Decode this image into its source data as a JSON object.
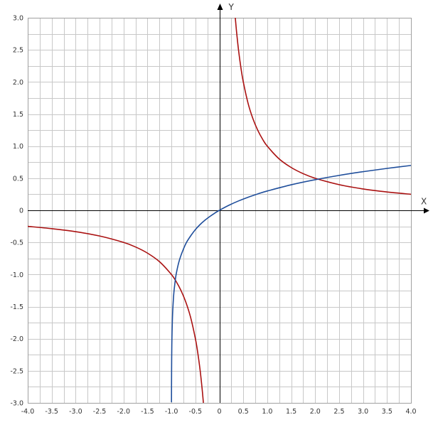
{
  "chart_data": {
    "type": "line",
    "xlim": [
      -4.0,
      4.0
    ],
    "ylim": [
      -3.0,
      3.0
    ],
    "grid": true,
    "x_axis_label": "X",
    "y_axis_label": "Y",
    "x_ticks": [
      "-4.0",
      "-3.5",
      "-3.0",
      "-2.5",
      "-2.0",
      "-1.5",
      "-1.0",
      "-0.5",
      "0",
      "0.5",
      "1.0",
      "1.5",
      "2.0",
      "2.5",
      "3.0",
      "3.5",
      "4.0"
    ],
    "y_ticks": [
      "3.0",
      "2.5",
      "2.0",
      "1.5",
      "1.0",
      "0.5",
      "0",
      "-0.5",
      "-1.0",
      "-1.5",
      "-2.0",
      "-2.5",
      "-3.0"
    ],
    "series": [
      {
        "color": "#aa1111",
        "segments": [
          {
            "x": [
              -4.0,
              -3.5,
              -3.0,
              -2.5,
              -2.0,
              -1.75,
              -1.5,
              -1.25,
              -1.0,
              -0.9,
              -0.8,
              -0.7,
              -0.6,
              -0.5,
              -0.45,
              -0.4,
              -0.36,
              -0.333
            ],
            "y": [
              -0.25,
              -0.286,
              -0.333,
              -0.4,
              -0.5,
              -0.571,
              -0.667,
              -0.8,
              -1.0,
              -1.111,
              -1.25,
              -1.429,
              -1.667,
              -2.0,
              -2.222,
              -2.5,
              -2.778,
              -3.0
            ]
          },
          {
            "x": [
              0.333,
              0.36,
              0.4,
              0.45,
              0.5,
              0.6,
              0.7,
              0.8,
              0.9,
              1.0,
              1.25,
              1.5,
              1.75,
              2.0,
              2.5,
              3.0,
              3.5,
              4.0
            ],
            "y": [
              3.0,
              2.778,
              2.5,
              2.222,
              2.0,
              1.667,
              1.429,
              1.25,
              1.111,
              1.0,
              0.8,
              0.667,
              0.571,
              0.5,
              0.4,
              0.333,
              0.286,
              0.25
            ]
          }
        ]
      },
      {
        "color": "#1f4e9b",
        "segments": [
          {
            "x": [
              -0.999,
              -0.998,
              -0.995,
              -0.99,
              -0.98,
              -0.97,
              -0.95,
              -0.92,
              -0.9,
              -0.85,
              -0.8,
              -0.7,
              -0.6,
              -0.5,
              -0.4,
              -0.3,
              -0.2,
              -0.1,
              0.0,
              0.2,
              0.4,
              0.6,
              0.8,
              1.0,
              1.5,
              2.0,
              2.5,
              3.0,
              3.5,
              4.0
            ],
            "y": [
              -2.99,
              -2.7,
              -2.3,
              -2.0,
              -1.7,
              -1.52,
              -1.29,
              -1.09,
              -0.99,
              -0.82,
              -0.7,
              -0.52,
              -0.4,
              -0.3,
              -0.22,
              -0.154,
              -0.097,
              -0.046,
              0.0,
              0.079,
              0.146,
              0.204,
              0.255,
              0.301,
              0.398,
              0.477,
              0.544,
              0.602,
              0.653,
              0.699
            ]
          }
        ]
      }
    ]
  }
}
